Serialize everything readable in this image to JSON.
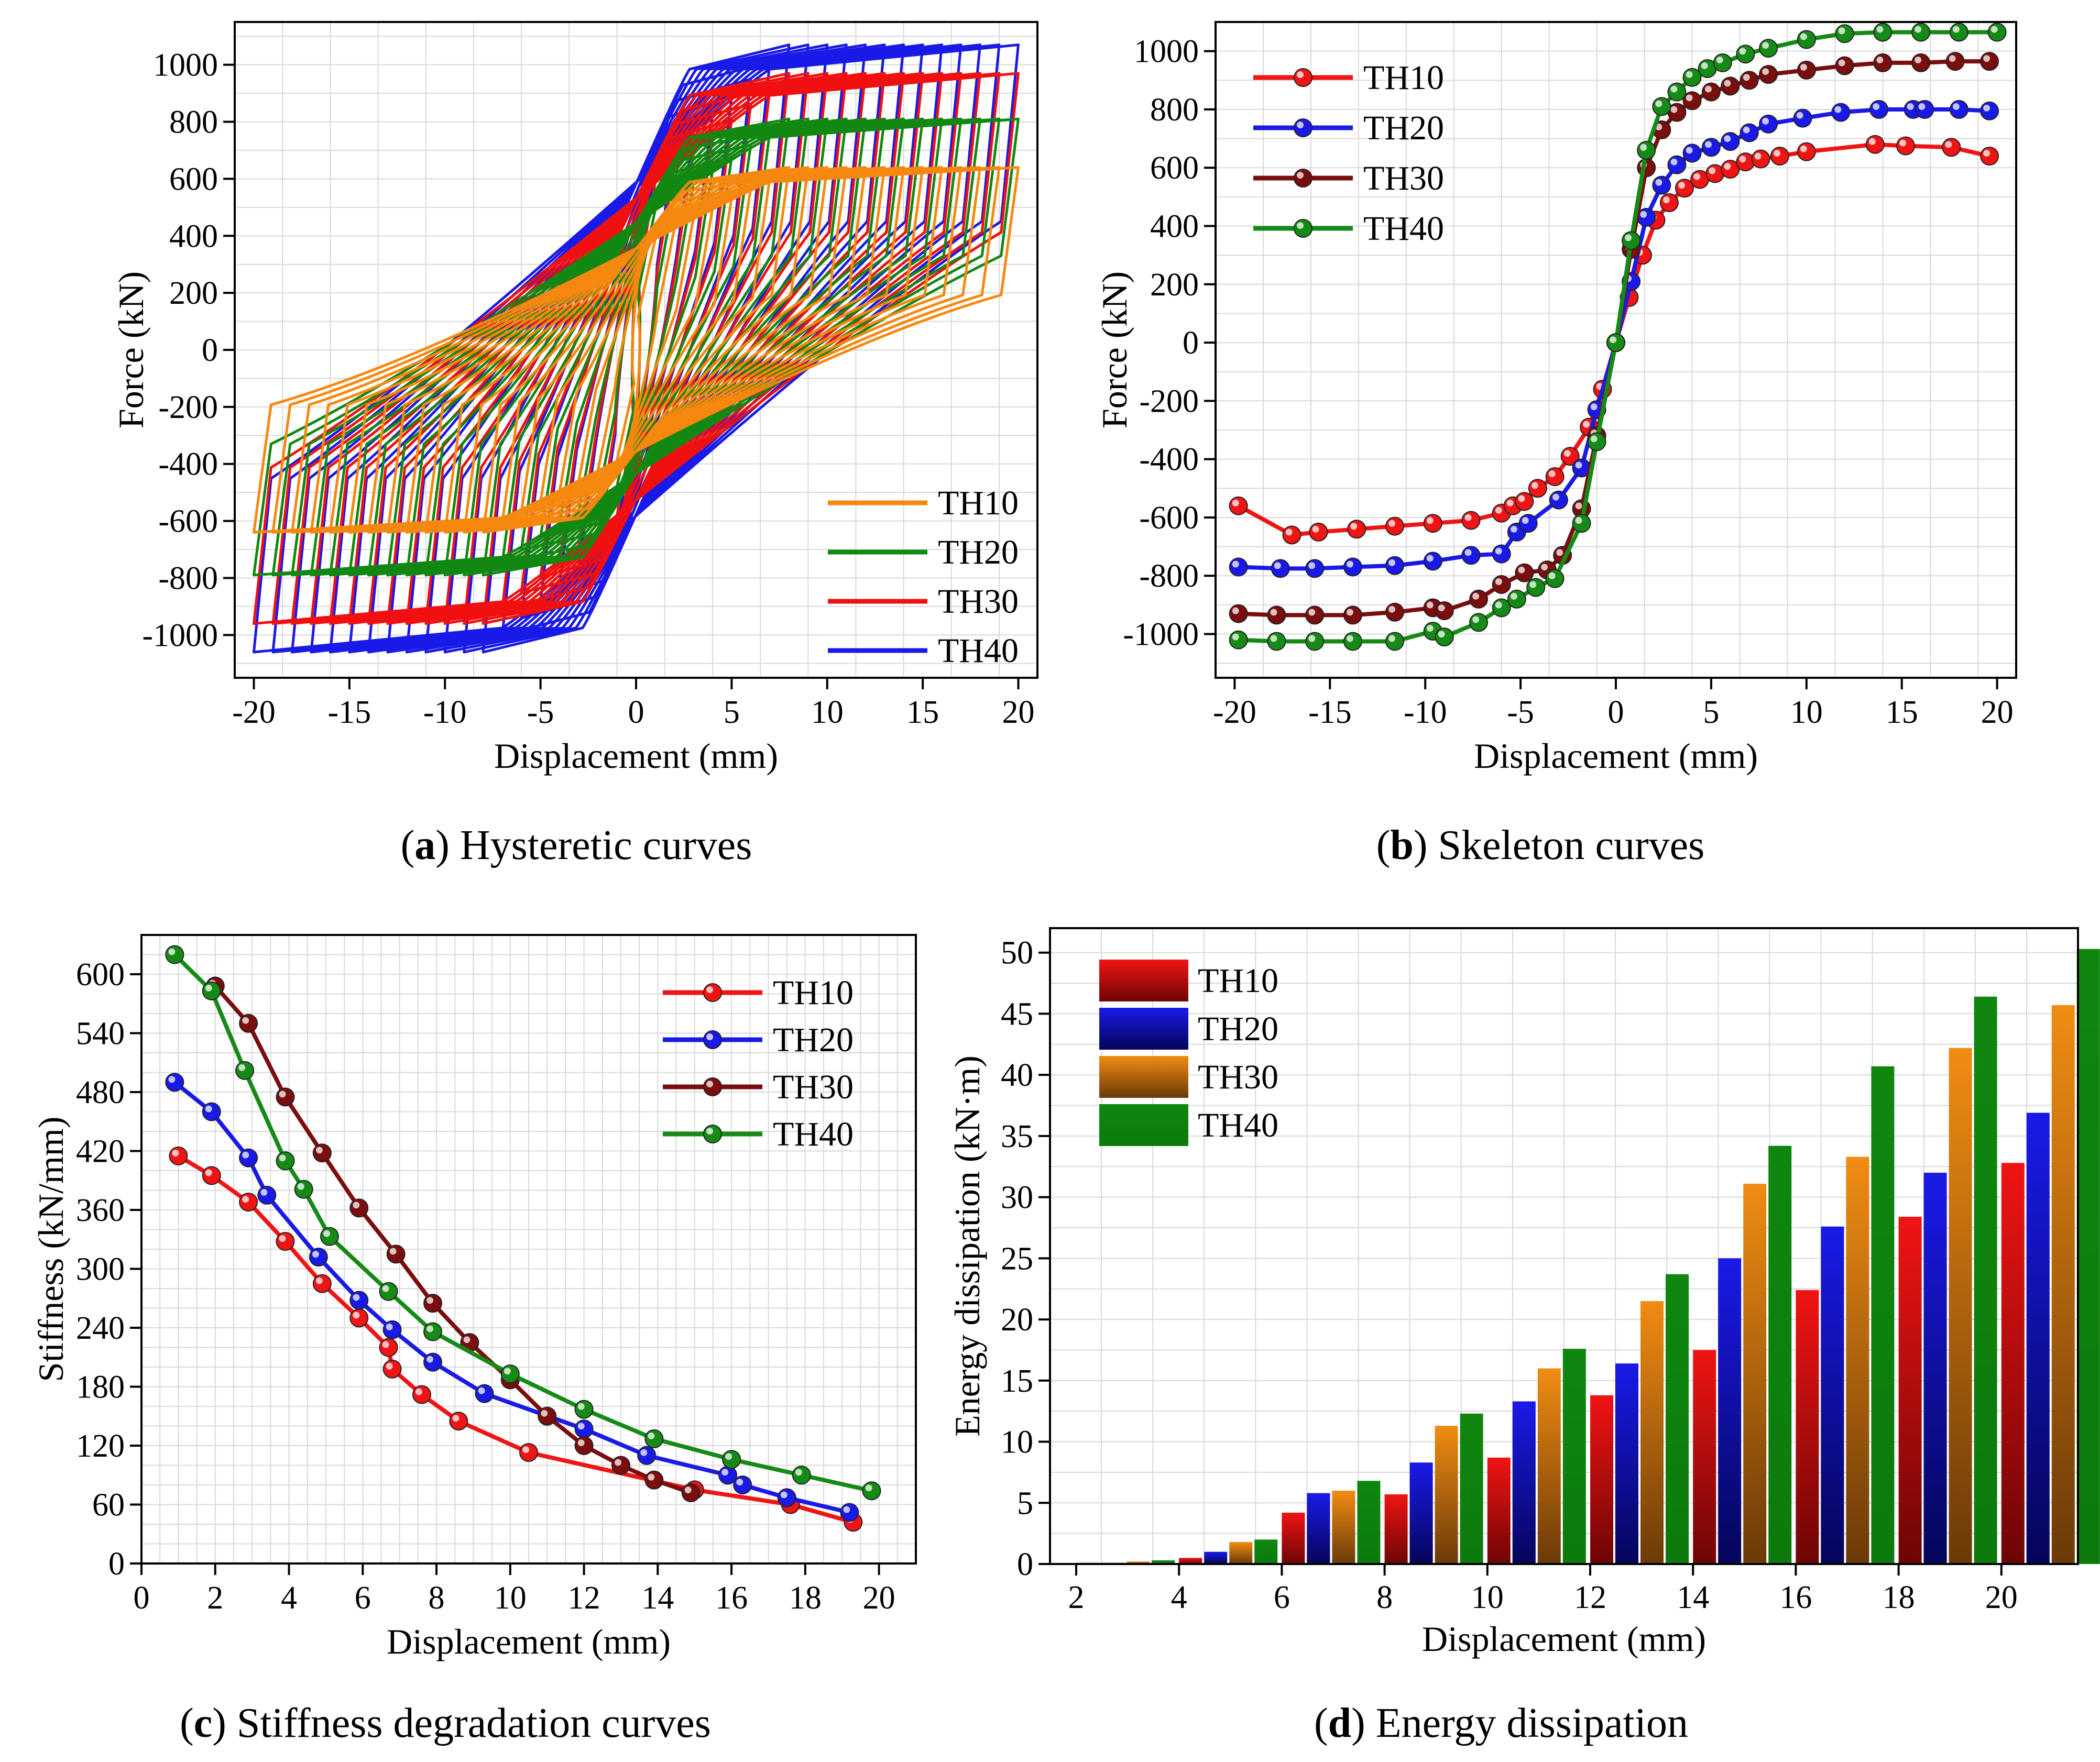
{
  "colors": {
    "TH10_a": "#f7880f",
    "TH20_a": "#118811",
    "TH30_a": "#f01010",
    "TH40_a": "#1a1ae8",
    "TH10": "#f01414",
    "TH20": "#1a1ae8",
    "TH30": "#7a0d0d",
    "TH40": "#168a16",
    "TH30_d": "#f08c12",
    "TH40_d": "#0f870f"
  },
  "chart_data": [
    {
      "id": "a",
      "type": "line",
      "caption_letter": "a",
      "caption_text": " Hysteretic curves",
      "xlabel": "Displacement (mm)",
      "ylabel": "Force (kN)",
      "xlim": [
        -21,
        21
      ],
      "ylim": [
        -1150,
        1150
      ],
      "xticks": [
        -20,
        -15,
        -10,
        -5,
        0,
        5,
        10,
        15,
        20
      ],
      "yticks": [
        -1000,
        -800,
        -600,
        -400,
        -200,
        0,
        200,
        400,
        600,
        800,
        1000
      ],
      "grid": true,
      "legend_position": "bottom-right",
      "series": [
        {
          "name": "TH10",
          "color_key": "TH10_a",
          "peak_force": 640,
          "neg_force": -640,
          "max_disp": 20,
          "yield_force": 350,
          "loop_count": 20
        },
        {
          "name": "TH20",
          "color_key": "TH20_a",
          "peak_force": 810,
          "neg_force": -790,
          "max_disp": 20,
          "yield_force": 600,
          "loop_count": 20
        },
        {
          "name": "TH30",
          "color_key": "TH30_a",
          "peak_force": 970,
          "neg_force": -960,
          "max_disp": 20,
          "yield_force": 750,
          "loop_count": 20
        },
        {
          "name": "TH40",
          "color_key": "TH40_a",
          "peak_force": 1070,
          "neg_force": -1060,
          "max_disp": 20,
          "yield_force": 820,
          "loop_count": 20
        }
      ]
    },
    {
      "id": "b",
      "type": "line",
      "caption_letter": "b",
      "caption_text": " Skeleton curves",
      "xlabel": "Displacement (mm)",
      "ylabel": "Force (kN)",
      "xlim": [
        -21,
        21
      ],
      "ylim": [
        -1150,
        1100
      ],
      "xticks": [
        -20,
        -15,
        -10,
        -5,
        0,
        5,
        10,
        15,
        20
      ],
      "yticks": [
        -1000,
        -800,
        -600,
        -400,
        -200,
        0,
        200,
        400,
        600,
        800,
        1000
      ],
      "grid": true,
      "legend_position": "top-left",
      "series": [
        {
          "name": "TH10",
          "color_key": "TH10",
          "x": [
            -19.8,
            -17,
            -15.6,
            -13.6,
            -11.6,
            -9.6,
            -7.6,
            -6.0,
            -5.4,
            -4.8,
            -4.1,
            -3.2,
            -2.4,
            -1.4,
            -0.7,
            0,
            0.7,
            1.4,
            2.1,
            2.8,
            3.6,
            4.4,
            5.2,
            6.0,
            6.8,
            7.6,
            8.6,
            10,
            13.6,
            15.2,
            17.6,
            19.6
          ],
          "y": [
            -560,
            -660,
            -650,
            -640,
            -630,
            -620,
            -610,
            -585,
            -560,
            -545,
            -500,
            -460,
            -390,
            -290,
            -160,
            0,
            155,
            300,
            420,
            480,
            530,
            560,
            580,
            595,
            620,
            630,
            640,
            655,
            680,
            675,
            670,
            640
          ]
        },
        {
          "name": "TH20",
          "color_key": "TH20",
          "x": [
            -19.8,
            -17.6,
            -15.8,
            -13.8,
            -11.6,
            -9.6,
            -7.6,
            -6.0,
            -5.2,
            -4.6,
            -3.0,
            -1.8,
            -1.0,
            0,
            0.8,
            1.6,
            2.4,
            3.2,
            4.0,
            5.0,
            6.0,
            7.0,
            8.0,
            9.8,
            11.8,
            13.8,
            15.6,
            16.2,
            18,
            19.6
          ],
          "y": [
            -770,
            -775,
            -775,
            -770,
            -765,
            -750,
            -730,
            -725,
            -650,
            -620,
            -540,
            -430,
            -230,
            0,
            210,
            430,
            540,
            610,
            650,
            670,
            690,
            720,
            750,
            770,
            790,
            800,
            800,
            800,
            800,
            795
          ]
        },
        {
          "name": "TH30",
          "color_key": "TH30",
          "x": [
            -19.8,
            -17.8,
            -15.8,
            -13.8,
            -11.6,
            -9.6,
            -9.0,
            -7.2,
            -6.0,
            -4.8,
            -3.6,
            -2.8,
            -1.8,
            -1.0,
            0,
            0.8,
            1.6,
            2.4,
            3.2,
            4.0,
            5.0,
            6.0,
            7.0,
            8.0,
            10,
            12,
            14,
            16,
            17.8,
            19.6
          ],
          "y": [
            -930,
            -935,
            -935,
            -935,
            -925,
            -910,
            -920,
            -880,
            -830,
            -790,
            -780,
            -730,
            -570,
            -320,
            0,
            320,
            600,
            730,
            790,
            830,
            860,
            880,
            900,
            920,
            935,
            950,
            960,
            960,
            965,
            965
          ]
        },
        {
          "name": "TH40",
          "color_key": "TH40",
          "x": [
            -19.8,
            -17.8,
            -15.8,
            -13.8,
            -11.6,
            -9.6,
            -9.0,
            -7.2,
            -6.0,
            -5.2,
            -4.2,
            -3.2,
            -1.8,
            -1.0,
            0,
            0.8,
            1.6,
            2.4,
            3.2,
            4.0,
            4.8,
            5.6,
            6.8,
            8.0,
            10,
            12,
            14,
            16,
            18,
            20
          ],
          "y": [
            -1020,
            -1025,
            -1025,
            -1025,
            -1025,
            -990,
            -1010,
            -960,
            -910,
            -880,
            -840,
            -810,
            -620,
            -340,
            0,
            350,
            660,
            810,
            860,
            910,
            940,
            960,
            990,
            1010,
            1040,
            1060,
            1065,
            1065,
            1065,
            1065
          ]
        }
      ]
    },
    {
      "id": "c",
      "type": "line",
      "caption_letter": "c",
      "caption_text": " Stiffness degradation curves",
      "xlabel": "Displacement (mm)",
      "ylabel": "Stiffness (kN/mm)",
      "xlim": [
        0,
        21
      ],
      "ylim": [
        0,
        640
      ],
      "xticks": [
        0,
        2,
        4,
        6,
        8,
        10,
        12,
        14,
        16,
        18,
        20
      ],
      "yticks": [
        0,
        60,
        120,
        180,
        240,
        300,
        360,
        420,
        480,
        540,
        600
      ],
      "grid": true,
      "legend_position": "top-right",
      "series": [
        {
          "name": "TH10",
          "color_key": "TH10",
          "x": [
            1,
            1.9,
            2.9,
            3.9,
            4.9,
            5.9,
            6.7,
            6.8,
            7.6,
            8.6,
            10.5,
            15,
            17.6,
            19.3
          ],
          "y": [
            415,
            395,
            368,
            328,
            285,
            250,
            220,
            198,
            172,
            145,
            113,
            75,
            60,
            42
          ]
        },
        {
          "name": "TH20",
          "color_key": "TH20",
          "x": [
            0.9,
            1.9,
            2.9,
            3.4,
            4.8,
            5.9,
            6.8,
            7.9,
            9.3,
            12,
            13.7,
            15.9,
            16.3,
            17.5,
            19.2
          ],
          "y": [
            490,
            460,
            413,
            375,
            312,
            268,
            238,
            205,
            173,
            137,
            110,
            90,
            80,
            67,
            52
          ]
        },
        {
          "name": "TH30",
          "color_key": "TH30",
          "x": [
            2,
            2.9,
            3.9,
            4.9,
            5.9,
            6.9,
            7.9,
            8.9,
            10,
            11,
            12,
            13,
            13.9,
            14.9
          ],
          "y": [
            588,
            550,
            475,
            418,
            362,
            315,
            265,
            225,
            187,
            150,
            120,
            100,
            85,
            72
          ]
        },
        {
          "name": "TH40",
          "color_key": "TH40",
          "x": [
            0.9,
            1.9,
            2.8,
            3.9,
            4.4,
            5.1,
            6.7,
            7.9,
            10,
            12,
            13.9,
            16,
            17.9,
            19.8
          ],
          "y": [
            620,
            583,
            502,
            410,
            381,
            333,
            277,
            236,
            193,
            157,
            127,
            106,
            90,
            74
          ]
        }
      ]
    },
    {
      "id": "d",
      "type": "bar",
      "caption_letter": "d",
      "caption_text": " Energy dissipation",
      "xlabel": "Displacement (mm)",
      "ylabel": "Energy dissipation (kN·m)",
      "ylim": [
        0,
        52
      ],
      "yticks": [
        0,
        5,
        10,
        15,
        20,
        25,
        30,
        35,
        40,
        45,
        50
      ],
      "grid": true,
      "legend_position": "top-left",
      "categories": [
        "2",
        "4",
        "6",
        "8",
        "10",
        "12",
        "14",
        "16",
        "18",
        "20"
      ],
      "series": [
        {
          "name": "TH10",
          "color_key": "TH10",
          "values": [
            0.1,
            0.5,
            4.2,
            5.7,
            8.7,
            13.8,
            17.5,
            22.4,
            28.4,
            32.8
          ]
        },
        {
          "name": "TH20",
          "color_key": "TH20",
          "values": [
            0.1,
            1.0,
            5.8,
            8.3,
            13.3,
            16.4,
            25.0,
            27.6,
            32.0,
            36.9
          ]
        },
        {
          "name": "TH30",
          "color_key": "TH30_d",
          "values": [
            0.2,
            1.8,
            6.0,
            11.3,
            16.0,
            21.5,
            31.1,
            33.3,
            42.2,
            45.7
          ]
        },
        {
          "name": "TH40",
          "color_key": "TH40_d",
          "values": [
            0.3,
            2.0,
            6.8,
            12.3,
            17.6,
            23.7,
            34.2,
            40.7,
            46.4,
            50.3
          ]
        }
      ]
    }
  ]
}
